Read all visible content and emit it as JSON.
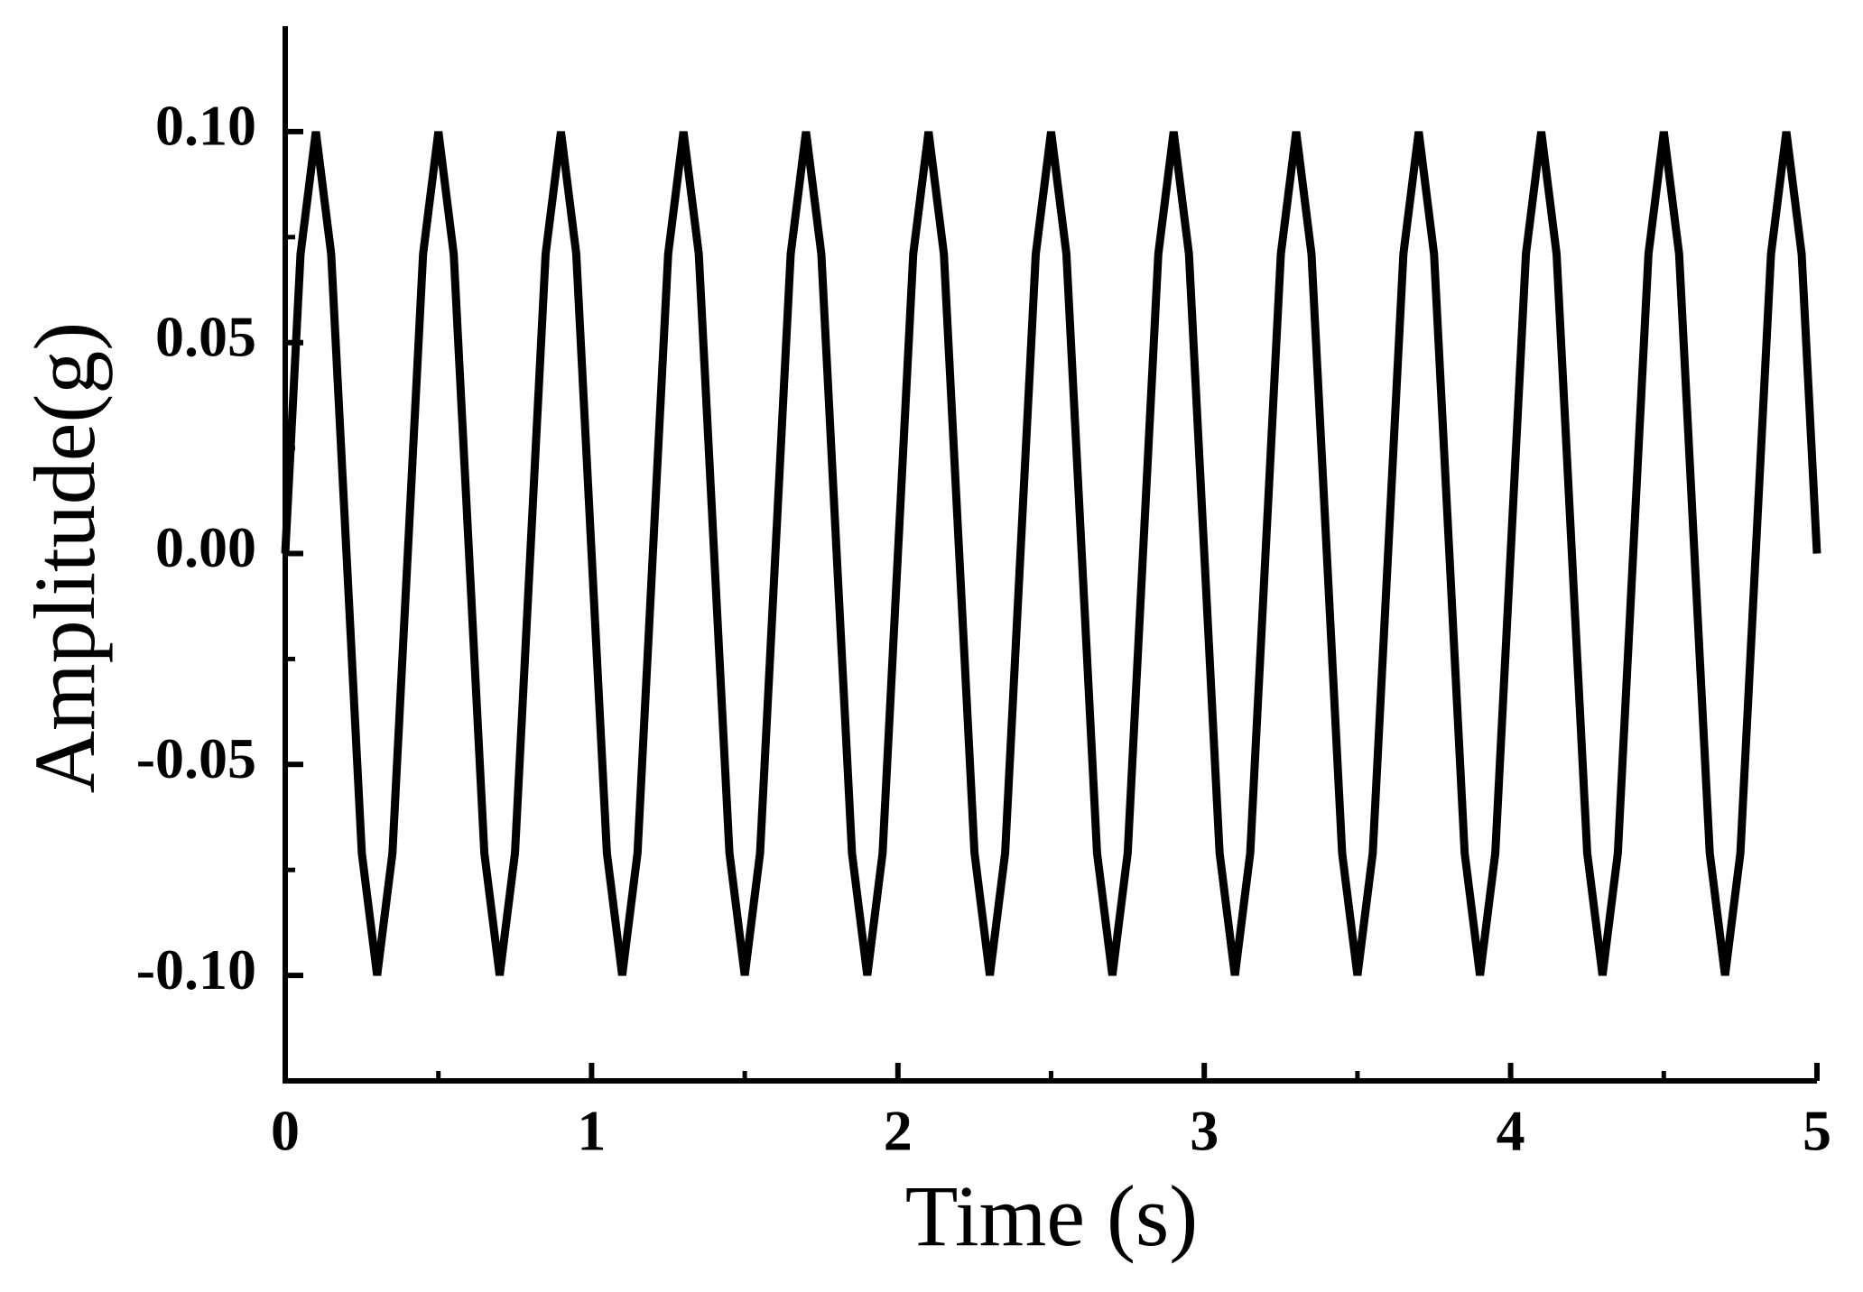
{
  "chart_data": {
    "type": "line",
    "x_label": "Time (s)",
    "y_label": "Amplitude(g)",
    "x": [
      0,
      0.05,
      0.1,
      0.15,
      0.2,
      0.25,
      0.3,
      0.35,
      0.4,
      0.45,
      0.5,
      0.55,
      0.6,
      0.65,
      0.7,
      0.75,
      0.8,
      0.85,
      0.9,
      0.95,
      1,
      1.05,
      1.1,
      1.15,
      1.2,
      1.25,
      1.3,
      1.35,
      1.4,
      1.45,
      1.5,
      1.55,
      1.6,
      1.65,
      1.7,
      1.75,
      1.8,
      1.85,
      1.9,
      1.95,
      2,
      2.05,
      2.1,
      2.15,
      2.2,
      2.25,
      2.3,
      2.35,
      2.4,
      2.45,
      2.5,
      2.55,
      2.6,
      2.65,
      2.7,
      2.75,
      2.8,
      2.85,
      2.9,
      2.95,
      3,
      3.05,
      3.1,
      3.15,
      3.2,
      3.25,
      3.3,
      3.35,
      3.4,
      3.45,
      3.5,
      3.55,
      3.6,
      3.65,
      3.7,
      3.75,
      3.8,
      3.85,
      3.9,
      3.95,
      4,
      4.05,
      4.1,
      4.15,
      4.2,
      4.25,
      4.3,
      4.35,
      4.4,
      4.45,
      4.5,
      4.55,
      4.6,
      4.65,
      4.7,
      4.75,
      4.8,
      4.85,
      4.9,
      4.95,
      5
    ],
    "values": [
      0,
      0.071,
      0.1,
      0.071,
      0,
      -0.071,
      -0.1,
      -0.071,
      0,
      0.071,
      0.1,
      0.071,
      0,
      -0.071,
      -0.1,
      -0.071,
      0,
      0.071,
      0.1,
      0.071,
      0,
      -0.071,
      -0.1,
      -0.071,
      0,
      0.071,
      0.1,
      0.071,
      0,
      -0.071,
      -0.1,
      -0.071,
      0,
      0.071,
      0.1,
      0.071,
      0,
      -0.071,
      -0.1,
      -0.071,
      0,
      0.071,
      0.1,
      0.071,
      0,
      -0.071,
      -0.1,
      -0.071,
      0,
      0.071,
      0.1,
      0.071,
      0,
      -0.071,
      -0.1,
      -0.071,
      0,
      0.071,
      0.1,
      0.071,
      0,
      -0.071,
      -0.1,
      -0.071,
      0,
      0.071,
      0.1,
      0.071,
      0,
      -0.071,
      -0.1,
      -0.071,
      0,
      0.071,
      0.1,
      0.071,
      0,
      -0.071,
      -0.1,
      -0.071,
      0,
      0.071,
      0.1,
      0.071,
      0,
      -0.071,
      -0.1,
      -0.071,
      0,
      0.071,
      0.1,
      0.071,
      0,
      -0.071,
      -0.1,
      -0.071,
      0,
      0.071,
      0.1,
      0.071,
      0
    ],
    "color": "#000000",
    "xlim": [
      0,
      5
    ],
    "xticks": [
      0,
      1,
      2,
      3,
      4,
      5
    ],
    "ylim": [
      -0.125,
      0.125
    ],
    "yticks": [
      {
        "value": -0.1,
        "label": "-0.10"
      },
      {
        "value": -0.05,
        "label": "-0.05"
      },
      {
        "value": 0,
        "label": "0.00"
      },
      {
        "value": 0.05,
        "label": "0.05"
      },
      {
        "value": 0.1,
        "label": "0.10"
      }
    ],
    "grid": false
  }
}
